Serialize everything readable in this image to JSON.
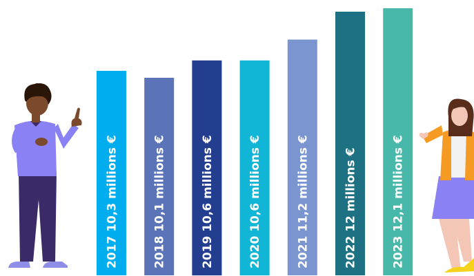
{
  "chart_data": {
    "type": "bar",
    "orientation": "vertical",
    "title": "",
    "xlabel": "",
    "ylabel": "",
    "unit": "millions €",
    "categories": [
      "2017",
      "2018",
      "2019",
      "2020",
      "2021",
      "2022",
      "2023"
    ],
    "values": [
      10.3,
      10.1,
      10.6,
      10.6,
      11.2,
      12,
      12.1
    ],
    "labels": [
      "2017  10,3 millions €",
      "2018 10,1 millions €",
      "2019 10,6 millions €",
      "2020 10,6 millions €",
      "2021 11,2 millions €",
      "2022 12 millions €",
      "2023 12,1 millions €"
    ],
    "colors": [
      "#00aeef",
      "#5b74b8",
      "#233d8f",
      "#11b5d5",
      "#7a95d0",
      "#1d7182",
      "#48b8aa"
    ],
    "grid": false,
    "legend": "none"
  },
  "illustrations": {
    "left": "man-pointing-up",
    "right": "woman-waving"
  }
}
